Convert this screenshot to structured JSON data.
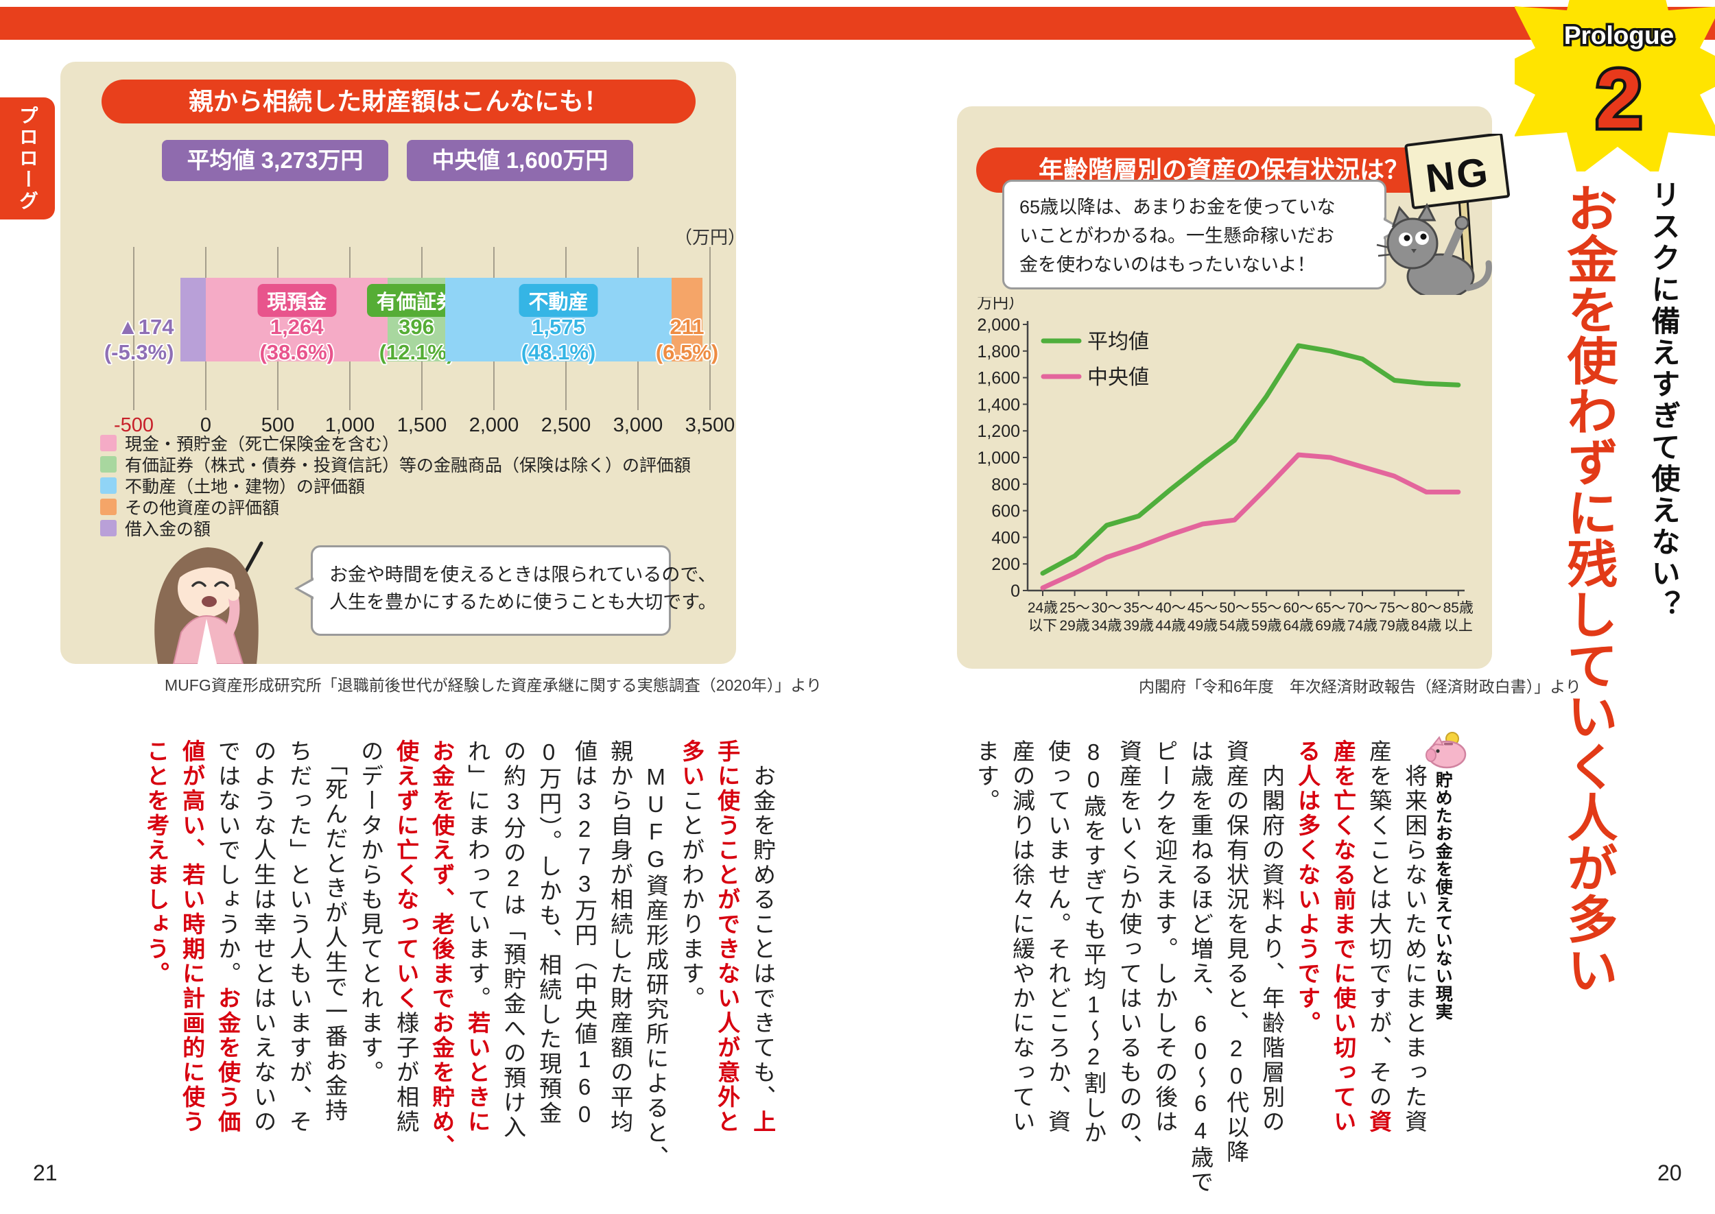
{
  "page": {
    "left_number": "21",
    "right_number": "20"
  },
  "prologue_tab": "プロローグ",
  "prologue_badge": {
    "label": "Prologue",
    "number": "2"
  },
  "headline": {
    "subtitle": "リスクに備えすぎて使えない？",
    "title": "お金を使わずに残していく人が多い",
    "section_heading": "貯めたお金を使えていない現実"
  },
  "left_panel": {
    "title": "親から相続した財産額はこんなにも！",
    "mean_badge": "平均値 3,273万円",
    "median_badge": "中央値 1,600万円",
    "axis_unit": "（万円）",
    "legend": [
      {
        "color": "#f5abc6",
        "label": "現金・預貯金（死亡保険金を含む）"
      },
      {
        "color": "#a8d79f",
        "label": "有価証券（株式・債券・投資信託）等の金融商品（保険は除く）の評価額"
      },
      {
        "color": "#90d4f6",
        "label": "不動産（土地・建物）の評価額"
      },
      {
        "color": "#f5a568",
        "label": "その他資産の評価額"
      },
      {
        "color": "#b9a0d8",
        "label": "借入金の額"
      }
    ],
    "bubble_lines": [
      "お金や時間を使えるときは限られているので、",
      "人生を豊かにするために使うことも大切です。"
    ],
    "source": "MUFG資産形成研究所「退職前後世代が経験した資産承継に関する実態調査（2020年）」より"
  },
  "right_panel": {
    "title": "年齢階層別の資産の保有状況は？",
    "bubble_lines": [
      "65歳以降は、あまりお金を使っていな",
      "いことがわかるね。一生懸命稼いだお",
      "金を使わないのはもったいないよ！"
    ],
    "ng_sign": "NG",
    "source": "内閣府「令和6年度　年次経済財政報告（経済財政白書）」より"
  },
  "chart_data": [
    {
      "type": "bar",
      "title": "親から相続した財産額はこんなにも！",
      "orientation": "horizontal-stacked",
      "unit": "万円",
      "xlim": [
        -500,
        3500
      ],
      "xticks": [
        -500,
        0,
        500,
        1000,
        1500,
        2000,
        2500,
        3000,
        3500
      ],
      "mean": 3273,
      "median": 1600,
      "segments": [
        {
          "name": "借入金の額",
          "display": "▲174",
          "value": -174,
          "pct": "-5.3%",
          "color": "#b9a0d8",
          "text_color": "#8e6fb5"
        },
        {
          "name": "現金・預貯金（死亡保険金を含む）",
          "badge": "現預金",
          "display": "1,264",
          "value": 1264,
          "pct": "38.6%",
          "color": "#f5abc6",
          "badge_color": "#e8548c",
          "text_color": "#e8548c"
        },
        {
          "name": "有価証券（株式・債券・投資信託）等の金融商品（保険は除く）の評価額",
          "badge": "有価証券",
          "display": "396",
          "value": 396,
          "pct": "12.1%",
          "color": "#a8d79f",
          "badge_color": "#55ad35",
          "text_color": "#55ad35"
        },
        {
          "name": "不動産（土地・建物）の評価額",
          "badge": "不動産",
          "display": "1,575",
          "value": 1575,
          "pct": "48.1%",
          "color": "#90d4f6",
          "badge_color": "#35b5e5",
          "text_color": "#35b5e5"
        },
        {
          "name": "その他資産の評価額",
          "display": "211",
          "value": 211,
          "pct": "6.5%",
          "color": "#f5a568",
          "text_color": "#ee8c42"
        }
      ]
    },
    {
      "type": "line",
      "unit": "万円",
      "ylabel": "（万円）",
      "ylim": [
        0,
        2000
      ],
      "ytick_step": 200,
      "legend_position": "upper-left",
      "categories": [
        [
          "24歳",
          "以下"
        ],
        [
          "25〜",
          "29歳"
        ],
        [
          "30〜",
          "34歳"
        ],
        [
          "35〜",
          "39歳"
        ],
        [
          "40〜",
          "44歳"
        ],
        [
          "45〜",
          "49歳"
        ],
        [
          "50〜",
          "54歳"
        ],
        [
          "55〜",
          "59歳"
        ],
        [
          "60〜",
          "64歳"
        ],
        [
          "65〜",
          "69歳"
        ],
        [
          "70〜",
          "74歳"
        ],
        [
          "75〜",
          "79歳"
        ],
        [
          "80〜",
          "84歳"
        ],
        [
          "85歳",
          "以上"
        ]
      ],
      "series": [
        {
          "name": "平均値",
          "color": "#4fae3c",
          "values": [
            130,
            260,
            490,
            560,
            760,
            950,
            1130,
            1460,
            1840,
            1800,
            1740,
            1580,
            1555,
            1545
          ]
        },
        {
          "name": "中央値",
          "color": "#e3659c",
          "values": [
            20,
            130,
            250,
            330,
            420,
            500,
            530,
            770,
            1020,
            1000,
            930,
            860,
            740,
            740
          ]
        }
      ]
    }
  ],
  "body_right": [
    [
      {
        "t": "　将来困らないためにまとまった資",
        "c": "k"
      }
    ],
    [
      {
        "t": "産を築くことは大切ですが、その",
        "c": "k"
      },
      {
        "t": "資",
        "c": "r"
      }
    ],
    [
      {
        "t": "産を亡くなる前までに使い切ってい",
        "c": "r"
      }
    ],
    [
      {
        "t": "る人は多くないようです。",
        "c": "r"
      }
    ],
    [
      {
        "t": "　内閣府の資料より、年齢階層別の",
        "c": "k"
      }
    ],
    [
      {
        "t": "資産の保有状況を見ると、20代以降",
        "c": "k"
      }
    ],
    [
      {
        "t": "は歳を重ねるほど増え、60〜64歳で",
        "c": "k"
      }
    ],
    [
      {
        "t": "ピークを迎えます。しかしその後は",
        "c": "k"
      }
    ],
    [
      {
        "t": "資産をいくらか使ってはいるものの、",
        "c": "k"
      }
    ],
    [
      {
        "t": "80歳をすぎても平均1〜2割しか",
        "c": "k"
      }
    ],
    [
      {
        "t": "使っていません。それどころか、資",
        "c": "k"
      }
    ],
    [
      {
        "t": "産の減りは徐々に緩やかになってい",
        "c": "k"
      }
    ],
    [
      {
        "t": "ます。",
        "c": "k"
      }
    ]
  ],
  "body_left": [
    [
      {
        "t": "　お金を貯めることはできても、",
        "c": "k"
      },
      {
        "t": "上",
        "c": "r"
      }
    ],
    [
      {
        "t": "手に使うことができない人が意外と",
        "c": "r"
      }
    ],
    [
      {
        "t": "多い",
        "c": "r"
      },
      {
        "t": "ことがわかります。",
        "c": "k"
      }
    ],
    [
      {
        "t": "　MUFG資産形成研究所によると、",
        "c": "k"
      }
    ],
    [
      {
        "t": "親から自身が相続した財産額の平均",
        "c": "k"
      }
    ],
    [
      {
        "t": "値は3273万円（中央値160",
        "c": "k"
      }
    ],
    [
      {
        "t": "0万円）。しかも、相続した現預金",
        "c": "k"
      }
    ],
    [
      {
        "t": "の約3分の2は「預貯金への預け入",
        "c": "k"
      }
    ],
    [
      {
        "t": "れ」にまわっています。",
        "c": "k"
      },
      {
        "t": "若いときに",
        "c": "r"
      }
    ],
    [
      {
        "t": "お金を使えず、老後までお金を貯め、",
        "c": "r"
      }
    ],
    [
      {
        "t": "使えずに亡くなっていく",
        "c": "r"
      },
      {
        "t": "様子が相続",
        "c": "k"
      }
    ],
    [
      {
        "t": "のデータからも見てとれます。",
        "c": "k"
      }
    ],
    [
      {
        "t": "　「死んだときが人生で一番お金持",
        "c": "k"
      }
    ],
    [
      {
        "t": "ちだった」という人もいますが、そ",
        "c": "k"
      }
    ],
    [
      {
        "t": "のような人生は幸せとはいえないの",
        "c": "k"
      }
    ],
    [
      {
        "t": "ではないでしょうか。",
        "c": "k"
      },
      {
        "t": "お金を使う価",
        "c": "r"
      }
    ],
    [
      {
        "t": "値が高い、若い時期に計画的に使う",
        "c": "r"
      }
    ],
    [
      {
        "t": "ことを考えましょう。",
        "c": "r"
      }
    ]
  ]
}
